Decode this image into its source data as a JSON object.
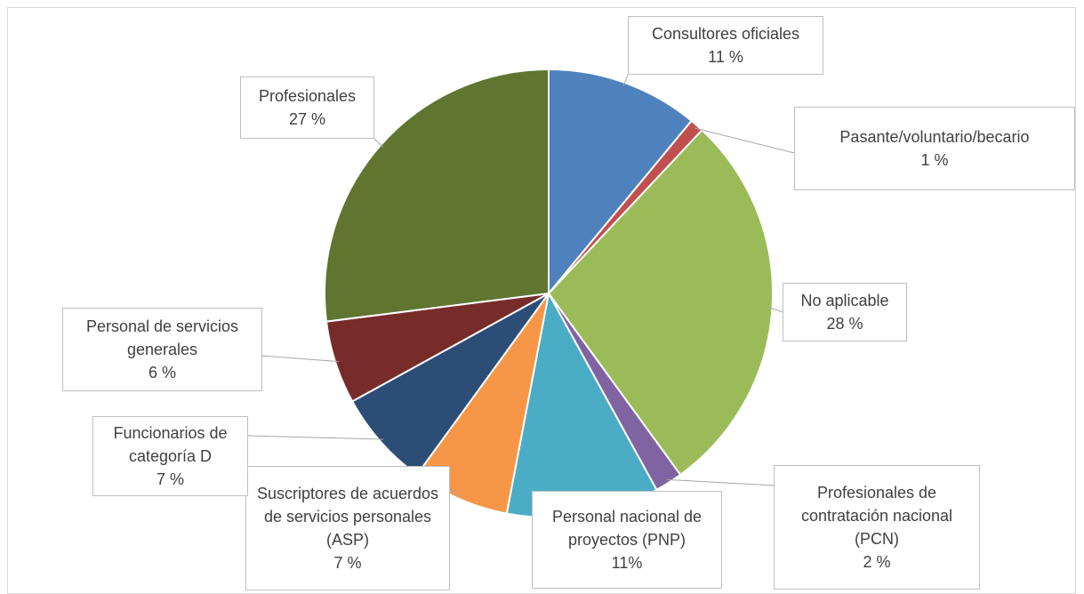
{
  "chart_data": {
    "type": "pie",
    "categories": [
      "Consultores oficiales",
      "Pasante/voluntario/becario",
      "No aplicable",
      "Profesionales de contratación nacional (PCN)",
      "Personal nacional de proyectos (PNP)",
      "Suscriptores de acuerdos de servicios personales (ASP)",
      "Funcionarios de categoría D",
      "Personal de servicios generales",
      "Profesionales"
    ],
    "values": [
      11,
      1,
      28,
      2,
      11,
      7,
      7,
      6,
      27
    ],
    "value_labels": [
      "11 %",
      "1 %",
      "28 %",
      "2 %",
      "11%",
      "7 %",
      "7 %",
      "6 %",
      "27 %"
    ],
    "colors": [
      "#4f81bd",
      "#c0504d",
      "#9bbb59",
      "#8064a2",
      "#4bacc6",
      "#f79646",
      "#2c4d75",
      "#772c2a",
      "#5f7530"
    ]
  }
}
